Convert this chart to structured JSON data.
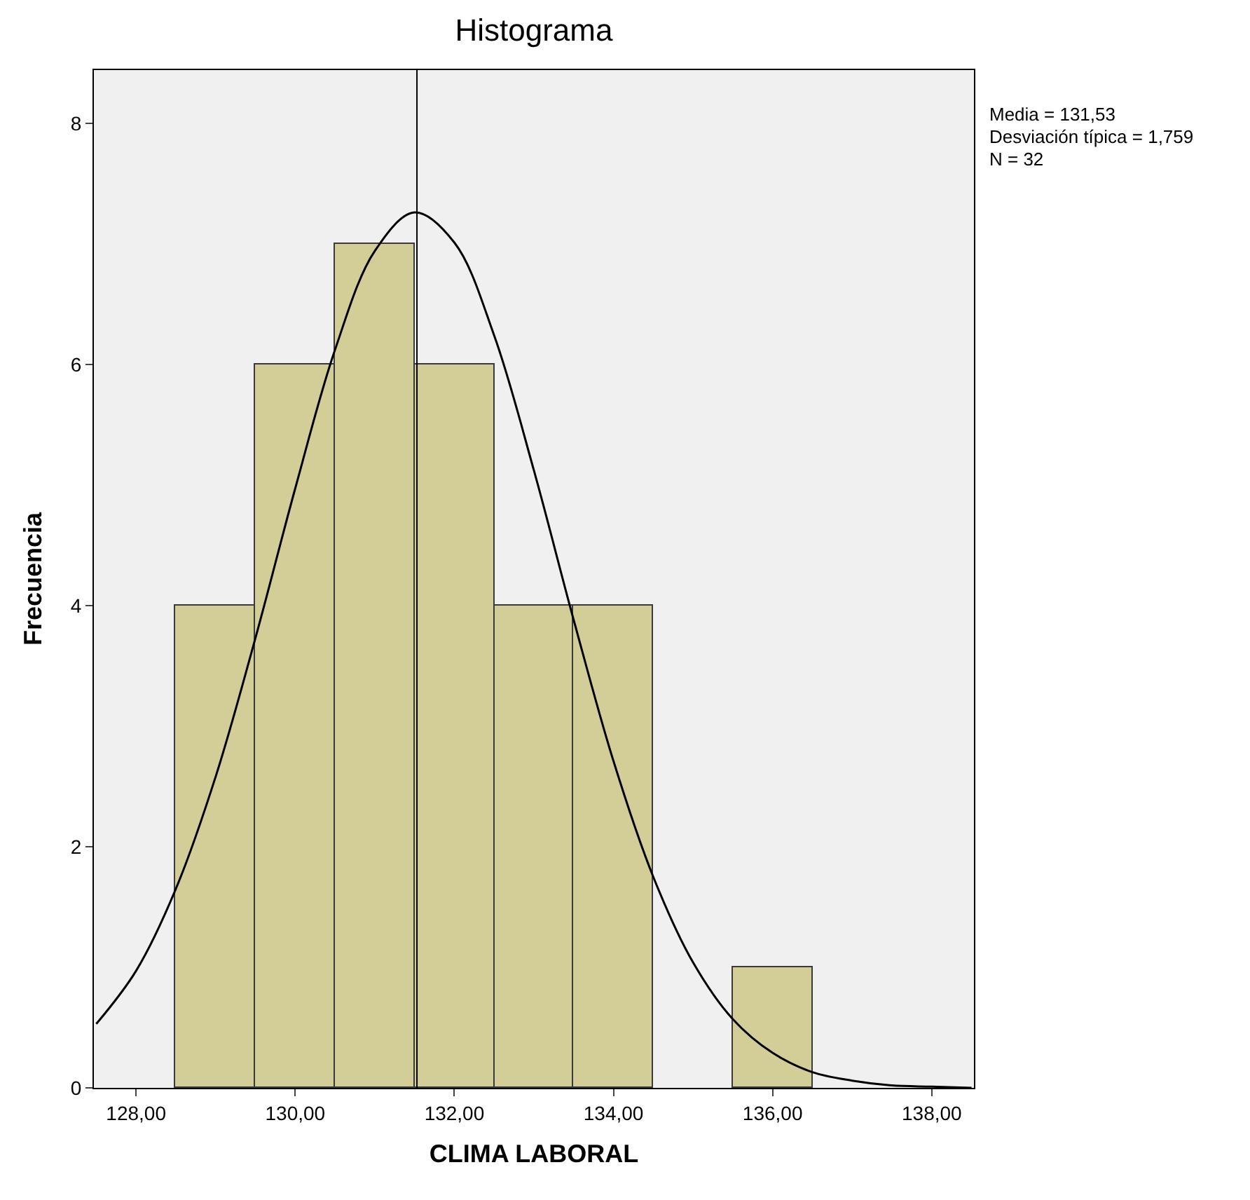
{
  "chart_data": {
    "type": "histogram",
    "title": "Histograma",
    "xlabel": "CLIMA LABORAL",
    "ylabel": "Frecuencia",
    "bins": [
      128.5,
      129.5,
      130.5,
      131.5,
      132.5,
      133.5,
      134.5,
      135.5,
      136.5
    ],
    "values": [
      4,
      6,
      7,
      6,
      4,
      4,
      0,
      1
    ],
    "color": "#d3ce97",
    "series": [
      {
        "type": "line",
        "color": "#000000",
        "x": [
          127.5,
          128,
          128.5,
          129,
          129.5,
          130,
          130.5,
          131,
          131.5,
          132,
          132.5,
          133,
          133.5,
          134,
          134.5,
          135,
          135.5,
          136,
          136.5,
          137,
          137.5,
          138,
          138.5
        ],
        "values": [
          0.53,
          0.97,
          1.65,
          2.58,
          3.73,
          4.97,
          6.12,
          6.94,
          7.26,
          7.01,
          6.24,
          5.12,
          3.88,
          2.71,
          1.75,
          1.04,
          0.57,
          0.29,
          0.13,
          0.06,
          0.02,
          0.01,
          0.0
        ]
      }
    ],
    "ref_lines": [
      {
        "axis": "x",
        "value": 131.53,
        "color": "#000000"
      }
    ],
    "annotations": [
      "Media = 131,53",
      "Desviación típica = 1,759",
      "N = 32"
    ],
    "xlim": [
      127.47,
      138.53
    ],
    "xticks": [
      {
        "value": 128,
        "label": "128,00"
      },
      {
        "value": 130,
        "label": "130,00"
      },
      {
        "value": 132,
        "label": "132,00"
      },
      {
        "value": 134,
        "label": "134,00"
      },
      {
        "value": 136,
        "label": "136,00"
      },
      {
        "value": 138,
        "label": "138,00"
      }
    ],
    "ylim": [
      0,
      8.44
    ],
    "yticks": [
      0,
      2,
      4,
      6,
      8
    ],
    "grid": false,
    "line_style": "solid"
  }
}
